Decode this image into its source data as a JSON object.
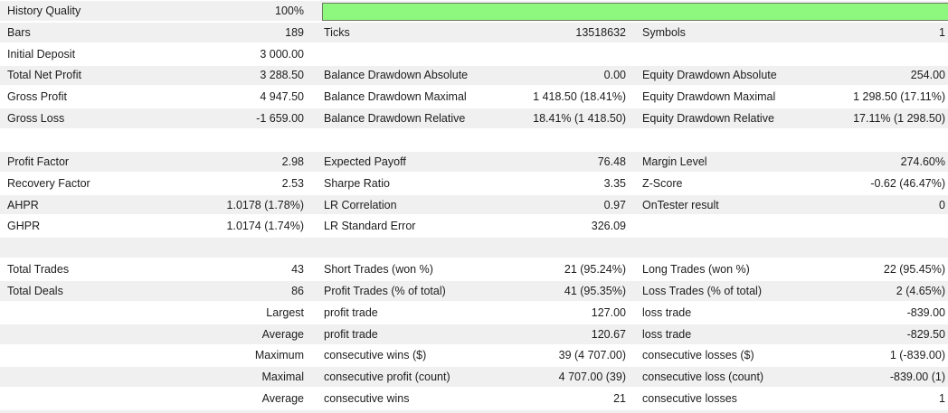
{
  "title": "Strategy Tester Backtest Results",
  "colors": {
    "background": "#ffffff",
    "row_stripe": "#f0f0f0",
    "text": "#1c1c1c",
    "quality_bar_fill": "#8ef87e",
    "quality_bar_border": "#6d7a62"
  },
  "quality_bar": {
    "percent": 100
  },
  "rows": [
    {
      "has_quality_bar": true,
      "cells": [
        "History Quality",
        "100%",
        "",
        "",
        "",
        ""
      ]
    },
    {
      "cells": [
        "Bars",
        "189",
        "Ticks",
        "13518632",
        "Symbols",
        "1"
      ]
    },
    {
      "cells": [
        "Initial Deposit",
        "3 000.00",
        "",
        "",
        "",
        ""
      ]
    },
    {
      "cells": [
        "Total Net Profit",
        "3 288.50",
        "Balance Drawdown Absolute",
        "0.00",
        "Equity Drawdown Absolute",
        "254.00"
      ]
    },
    {
      "cells": [
        "Gross Profit",
        "4 947.50",
        "Balance Drawdown Maximal",
        "1 418.50 (18.41%)",
        "Equity Drawdown Maximal",
        "1 298.50 (17.11%)"
      ]
    },
    {
      "cells": [
        "Gross Loss",
        "-1 659.00",
        "Balance Drawdown Relative",
        "18.41% (1 418.50)",
        "Equity Drawdown Relative",
        "17.11% (1 298.50)"
      ]
    },
    {
      "cells": [
        "",
        "",
        "",
        "",
        "",
        ""
      ]
    },
    {
      "cells": [
        "Profit Factor",
        "2.98",
        "Expected Payoff",
        "76.48",
        "Margin Level",
        "274.60%"
      ]
    },
    {
      "cells": [
        "Recovery Factor",
        "2.53",
        "Sharpe Ratio",
        "3.35",
        "Z-Score",
        "-0.62 (46.47%)"
      ]
    },
    {
      "cells": [
        "AHPR",
        "1.0178 (1.78%)",
        "LR Correlation",
        "0.97",
        "OnTester result",
        "0"
      ]
    },
    {
      "cells": [
        "GHPR",
        "1.0174 (1.74%)",
        "LR Standard Error",
        "326.09",
        "",
        ""
      ]
    },
    {
      "cells": [
        "",
        "",
        "",
        "",
        "",
        ""
      ]
    },
    {
      "cells": [
        "Total Trades",
        "43",
        "Short Trades (won %)",
        "21 (95.24%)",
        "Long Trades (won %)",
        "22 (95.45%)"
      ]
    },
    {
      "cells": [
        "Total Deals",
        "86",
        "Profit Trades (% of total)",
        "41 (95.35%)",
        "Loss Trades (% of total)",
        "2 (4.65%)"
      ]
    },
    {
      "cells": [
        "",
        "Largest",
        "profit trade",
        "127.00",
        "loss trade",
        "-839.00"
      ]
    },
    {
      "cells": [
        "",
        "Average",
        "profit trade",
        "120.67",
        "loss trade",
        "-829.50"
      ]
    },
    {
      "cells": [
        "",
        "Maximum",
        "consecutive wins ($)",
        "39 (4 707.00)",
        "consecutive losses ($)",
        "1 (-839.00)"
      ]
    },
    {
      "cells": [
        "",
        "Maximal",
        "consecutive profit (count)",
        "4 707.00 (39)",
        "consecutive loss (count)",
        "-839.00 (1)"
      ]
    },
    {
      "cells": [
        "",
        "Average",
        "consecutive wins",
        "21",
        "consecutive losses",
        "1"
      ]
    },
    {
      "cells": [
        "",
        "",
        "",
        "",
        "",
        ""
      ]
    }
  ]
}
